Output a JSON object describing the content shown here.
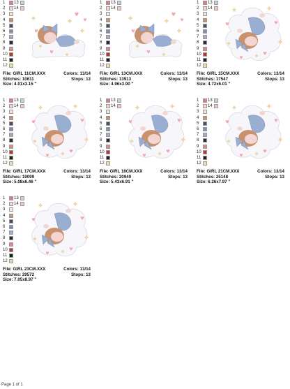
{
  "palette": [
    "#e07a8a",
    "#f3d6d2",
    "#efe6e0",
    "#c9926f",
    "#4a4f5a",
    "#7d8fb3",
    "#9aaed1",
    "#2a2a2e",
    "#d98a9a",
    "#b7382f",
    "#1b1c1f",
    "#f2d9a6",
    "#c6cfdc",
    "#f4c9c4"
  ],
  "swatch_numbers": [
    "1",
    "2",
    "3",
    "4",
    "5",
    "6",
    "7",
    "8",
    "9",
    "10",
    "11",
    "12"
  ],
  "swatch_numbers_right": [
    "13",
    "14"
  ],
  "labels": {
    "file": "File:",
    "stitches": "Stitches:",
    "size": "Size:",
    "colors": "Colors:",
    "stops": "Stops:"
  },
  "designs": [
    {
      "file": "GIRL 11CM.XXX",
      "stitches": "10611",
      "size": "4.01x3.15 \"",
      "colors": "13/14",
      "stops": "13",
      "art": "horizontal"
    },
    {
      "file": "GIRL 13CM.XXX",
      "stitches": "13913",
      "size": "4.96x3.90 \"",
      "colors": "13/14",
      "stops": "13",
      "art": "horizontal"
    },
    {
      "file": "GIRL 15CM.XXX",
      "stitches": "17547",
      "size": "4.72x6.01 \"",
      "colors": "13/14",
      "stops": "13",
      "art": "vertical"
    },
    {
      "file": "GIRL 17CM.XXX",
      "stitches": "19099",
      "size": "5.08x6.46 \"",
      "colors": "13/14",
      "stops": "13",
      "art": "vertical"
    },
    {
      "file": "GIRL 18CM.XXX",
      "stitches": "20949",
      "size": "5.43x6.91 \"",
      "colors": "13/14",
      "stops": "13",
      "art": "vertical"
    },
    {
      "file": "GIRL 21CM.XXX",
      "stitches": "25148",
      "size": "6.26x7.97 \"",
      "colors": "13/14",
      "stops": "13",
      "art": "vertical"
    },
    {
      "file": "GIRL 23CM.XXX",
      "stitches": "29572",
      "size": "7.05x8.97 \"",
      "colors": "13/14",
      "stops": "13",
      "art": "vertical"
    }
  ],
  "footer": "Page 1 of 1"
}
